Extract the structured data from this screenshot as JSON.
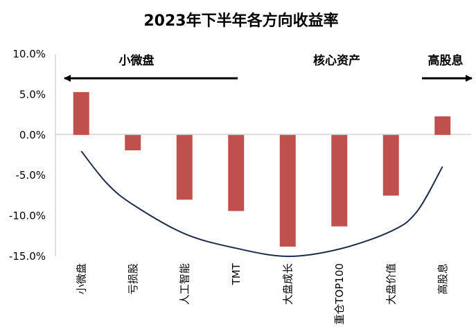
{
  "chart_data": {
    "type": "bar",
    "title": "2023年下半年各方向收益率",
    "xlabel": "",
    "ylabel": "",
    "ylim": [
      -15,
      10
    ],
    "yticks": [
      "10.0%",
      "5.0%",
      "0.0%",
      "-5.0%",
      "-10.0%",
      "-15.0%"
    ],
    "ytick_values": [
      10,
      5,
      0,
      -5,
      -10,
      -15
    ],
    "grid": false,
    "categories": [
      "小微盘",
      "亏损股",
      "人工智能",
      "TMT",
      "大盘成长",
      "重仓TOP100",
      "大盘价值",
      "高股息"
    ],
    "values": [
      5.3,
      -1.9,
      -8.0,
      -9.4,
      -13.8,
      -11.3,
      -7.5,
      2.3
    ],
    "bar_color": "#c0504d",
    "curve": {
      "color": "#1f2d4d",
      "points": [
        [
          0,
          -2.0
        ],
        [
          0.5,
          -6.0
        ],
        [
          1,
          -8.6
        ],
        [
          2,
          -12.2
        ],
        [
          3,
          -14.0
        ],
        [
          4,
          -15.0
        ],
        [
          5,
          -14.1
        ],
        [
          6,
          -11.9
        ],
        [
          6.5,
          -9.5
        ],
        [
          7,
          -3.9
        ]
      ]
    },
    "annotations": {
      "left_label": "小微盘",
      "middle_label": "核心资产",
      "right_label": "高股息"
    }
  }
}
